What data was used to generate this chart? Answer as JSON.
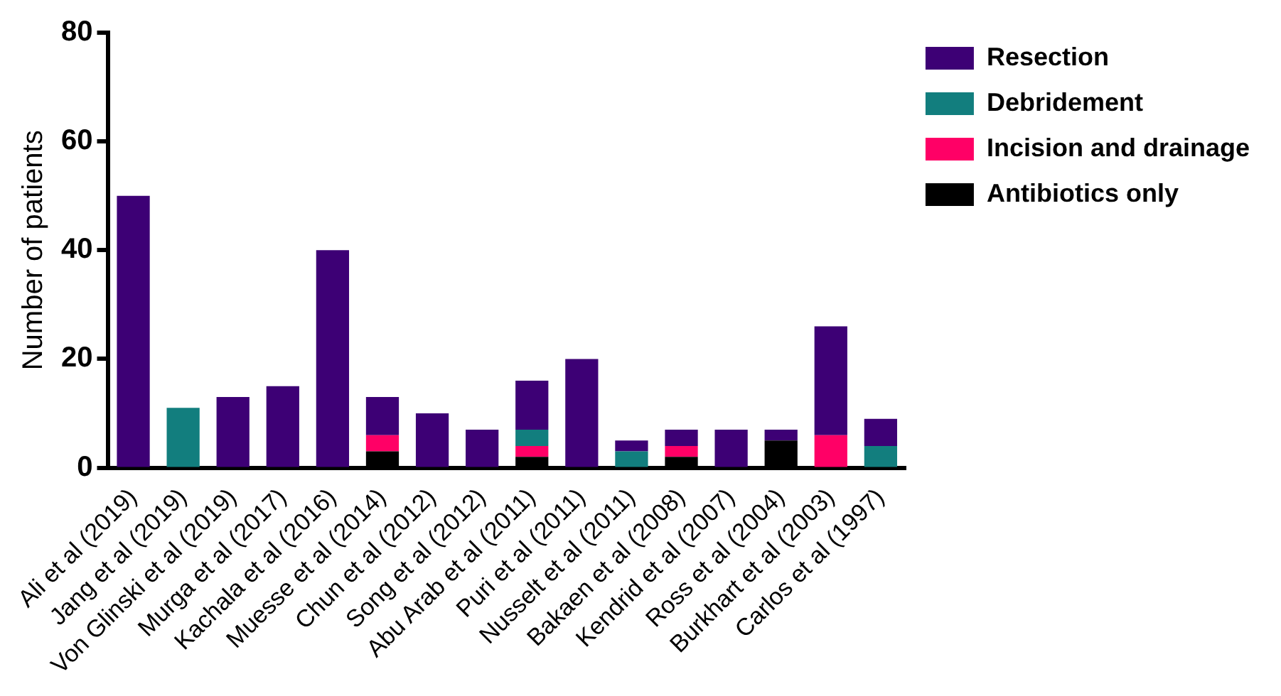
{
  "chart_data": {
    "type": "bar",
    "ylabel": "Number of patients",
    "stacked": true,
    "legend": "top right",
    "grid": false,
    "categories": [
      "Ali et al (2019)",
      "Jang et al (2019)",
      "Von Glinski et al (2019)",
      "Murga et al (2017)",
      "Kachala et al (2016)",
      "Muesse et al (2014)",
      "Chun et al (2012)",
      "Song et al (2012)",
      "Abu Arab et al (2011)",
      "Puri et al (2011)",
      "Nusselt et al (2011)",
      "Bakaen et al (2008)",
      "Kendrid et al (2007)",
      "Ross et al (2004)",
      "Burkhart et al (2003)",
      "Carlos et al (1997)"
    ],
    "series": [
      {
        "name": "Antibiotics only",
        "color": "#000000",
        "values": [
          0,
          0,
          0,
          0,
          0,
          3,
          0,
          0,
          2,
          0,
          0,
          2,
          0,
          5,
          0,
          0
        ]
      },
      {
        "name": "Incision and drainage",
        "color": "#ff0066",
        "values": [
          0,
          0,
          0,
          0,
          0,
          3,
          0,
          0,
          2,
          0,
          0,
          2,
          0,
          0,
          6,
          0
        ]
      },
      {
        "name": "Debridement",
        "color": "#127e7e",
        "values": [
          0,
          11,
          0,
          0,
          0,
          0,
          0,
          0,
          3,
          0,
          3,
          0,
          0,
          0,
          0,
          4
        ]
      },
      {
        "name": "Resection",
        "color": "#3d0075",
        "values": [
          50,
          0,
          13,
          15,
          40,
          7,
          10,
          7,
          9,
          20,
          2,
          3,
          7,
          2,
          20,
          5
        ]
      }
    ],
    "ylim": [
      0,
      80
    ],
    "yticks": [
      0,
      20,
      40,
      60,
      80
    ]
  }
}
